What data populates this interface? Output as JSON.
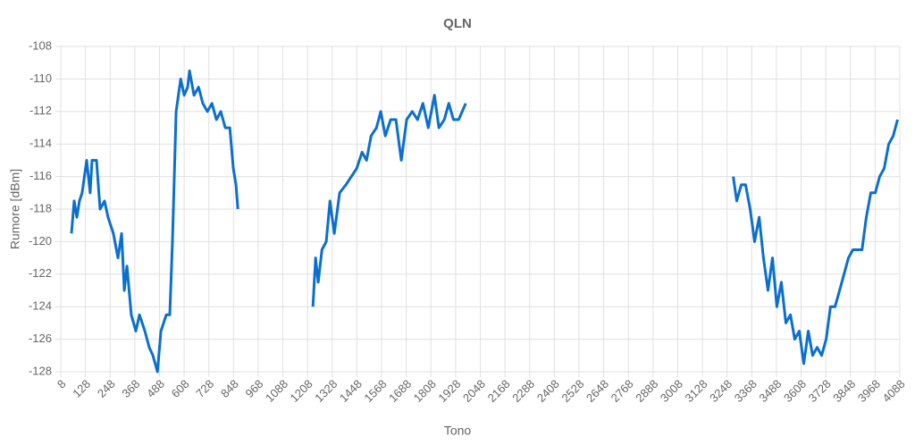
{
  "chart_data": {
    "type": "line",
    "title": "QLN",
    "x_label": "Tono",
    "y_label": "Rumore [dBm]",
    "x": [
      60,
      73,
      86,
      99,
      112,
      134,
      151,
      160,
      182,
      199,
      221,
      238,
      264,
      286,
      304,
      317,
      330,
      351,
      373,
      391,
      417,
      438,
      456,
      478,
      495,
      521,
      538,
      551,
      569,
      591,
      608,
      625,
      634,
      656,
      678,
      699,
      721,
      743,
      765,
      786,
      808,
      830,
      847,
      860,
      869,
      1000,
      1234,
      1247,
      1260,
      1278,
      1299,
      1317,
      1338,
      1364,
      1395,
      1421,
      1447,
      1473,
      1495,
      1517,
      1543,
      1564,
      1586,
      1612,
      1638,
      1664,
      1690,
      1717,
      1743,
      1769,
      1795,
      1825,
      1847,
      1873,
      1895,
      1917,
      1943,
      1977,
      2600,
      3278,
      3295,
      3317,
      3338,
      3360,
      3382,
      3404,
      3425,
      3447,
      3469,
      3490,
      3512,
      3534,
      3556,
      3577,
      3599,
      3621,
      3643,
      3664,
      3686,
      3708,
      3730,
      3751,
      3773,
      3795,
      3817,
      3838,
      3860,
      3882,
      3904,
      3925,
      3947,
      3969,
      3990,
      4012,
      4034,
      4056,
      4077
    ],
    "series": [
      {
        "name": "QLN",
        "color": "#0b6fcf",
        "values": [
          -119.5,
          -117.5,
          -118.5,
          -117.5,
          -117,
          -115,
          -117,
          -115,
          -115,
          -118,
          -117.5,
          -118.5,
          -119.5,
          -121,
          -119.5,
          -123,
          -121.5,
          -124.5,
          -125.5,
          -124.5,
          -125.5,
          -126.5,
          -127,
          -128,
          -125.5,
          -124.5,
          -124.5,
          -120,
          -112,
          -110,
          -111,
          -110.5,
          -109.5,
          -111,
          -110.5,
          -111.5,
          -112,
          -111.5,
          -112.5,
          -112,
          -113,
          -113,
          -115.5,
          -116.5,
          -118,
          null,
          -124,
          -121,
          -122.5,
          -120.5,
          -120,
          -117.5,
          -119.5,
          -117,
          -116.5,
          -116,
          -115.5,
          -114.5,
          -115,
          -113.5,
          -113,
          -112,
          -113.5,
          -112.5,
          -112.5,
          -115,
          -112.5,
          -112,
          -112.5,
          -111.5,
          -113,
          -111,
          -113,
          -112.5,
          -111.5,
          -112.5,
          -112.5,
          -111.5,
          null,
          -116,
          -117.5,
          -116.5,
          -116.5,
          -118,
          -120,
          -118.5,
          -121,
          -123,
          -121,
          -124,
          -122.5,
          -125,
          -124.5,
          -126,
          -125.5,
          -127.5,
          -125.5,
          -127,
          -126.5,
          -127,
          -126,
          -124,
          -124,
          -123,
          -122,
          -121,
          -120.5,
          -120.5,
          -120.5,
          -118.5,
          -117,
          -117,
          -116,
          -115.5,
          -114,
          -113.5,
          -112.5
        ]
      }
    ],
    "xlim": [
      8,
      4088
    ],
    "xticks": [
      8,
      128,
      248,
      368,
      488,
      608,
      728,
      848,
      968,
      1088,
      1208,
      1328,
      1448,
      1568,
      1688,
      1808,
      1928,
      2048,
      2168,
      2288,
      2408,
      2528,
      2648,
      2768,
      2888,
      3008,
      3128,
      3248,
      3368,
      3488,
      3608,
      3728,
      3848,
      3968,
      4088
    ],
    "ylim": [
      -128,
      -108
    ],
    "yticks": [
      -128,
      -126,
      -124,
      -122,
      -120,
      -118,
      -116,
      -114,
      -112,
      -110,
      -108
    ],
    "grid": true
  }
}
